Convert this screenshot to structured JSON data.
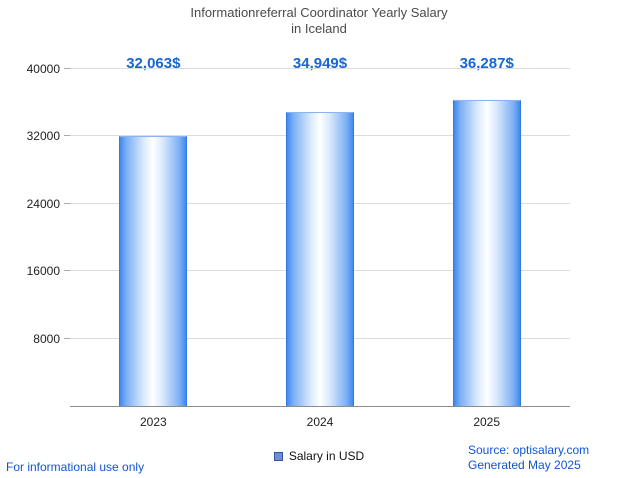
{
  "title": {
    "line1": "Informationreferral Coordinator Yearly Salary",
    "line2": "in Iceland"
  },
  "chart_data": {
    "type": "bar",
    "title": "Informationreferral Coordinator Yearly Salary in Iceland",
    "categories": [
      "2023",
      "2024",
      "2025"
    ],
    "values": [
      32063,
      34949,
      36287
    ],
    "value_labels": [
      "32,063$",
      "34,949$",
      "36,287$"
    ],
    "series_name": "Salary in USD",
    "xlabel": "",
    "ylabel": "",
    "ylim": [
      0,
      40000
    ],
    "yticks": [
      8000,
      16000,
      24000,
      32000,
      40000
    ],
    "grid": true,
    "legend_position": "bottom",
    "bar_edge_color": "#4289ee",
    "bar_center_color": "#ffffff"
  },
  "legend": {
    "label": "Salary in USD",
    "swatch_color": "#6f8fd2"
  },
  "footer": {
    "left": "For informational use only",
    "source": "Source: optisalary.com",
    "generated": "Generated May 2025"
  },
  "colors": {
    "value_label": "#1766d1",
    "link_text": "#1155d4",
    "grid": "#dcdcdc",
    "axis": "#8c8c8c",
    "title": "#4a4a4a"
  }
}
